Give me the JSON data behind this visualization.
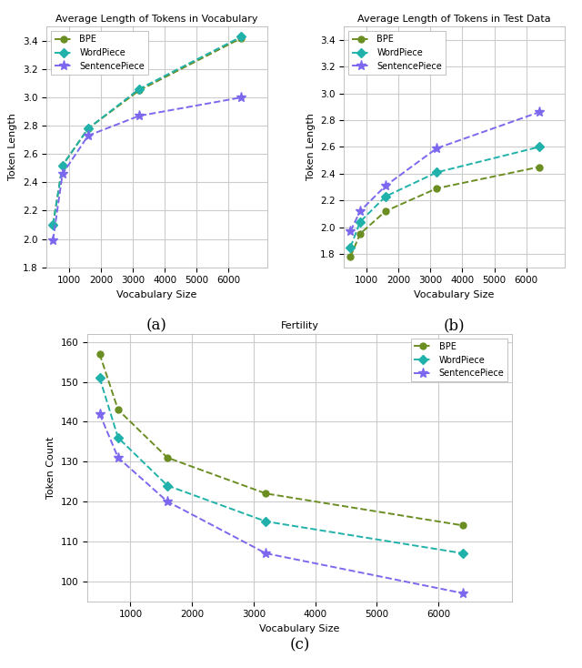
{
  "vocab_sizes": [
    500,
    800,
    1600,
    3200,
    6400
  ],
  "vocab_len_bpe": [
    2.1,
    2.52,
    2.78,
    3.05,
    3.42
  ],
  "vocab_len_wp": [
    2.1,
    2.52,
    2.78,
    3.06,
    3.43
  ],
  "vocab_len_sp": [
    1.99,
    2.46,
    2.73,
    2.87,
    3.0
  ],
  "test_len_bpe": [
    1.78,
    1.95,
    2.12,
    2.29,
    2.45
  ],
  "test_len_wp": [
    1.85,
    2.04,
    2.23,
    2.41,
    2.6
  ],
  "test_len_sp": [
    1.97,
    2.12,
    2.31,
    2.59,
    2.86
  ],
  "fertility_bpe": [
    157,
    143,
    131,
    122,
    114
  ],
  "fertility_wp": [
    151,
    136,
    124,
    115,
    107
  ],
  "fertility_sp": [
    142,
    131,
    120,
    107,
    97
  ],
  "color_bpe": "#6b8e23",
  "color_wp": "#20b2aa",
  "color_sp": "#7b68ee",
  "title_vocab": "Average Length of Tokens in Vocabulary",
  "title_test": "Average Length of Tokens in Test Data",
  "title_fertility": "Fertility",
  "xlabel": "Vocabulary Size",
  "ylabel_len": "Token Length",
  "ylabel_fert": "Token Count",
  "label_a": "(a)",
  "label_b": "(b)",
  "label_c": "(c)",
  "ax_facecolor": "#ffffff",
  "grid_color": "#cccccc",
  "fig_facecolor": "#ffffff"
}
